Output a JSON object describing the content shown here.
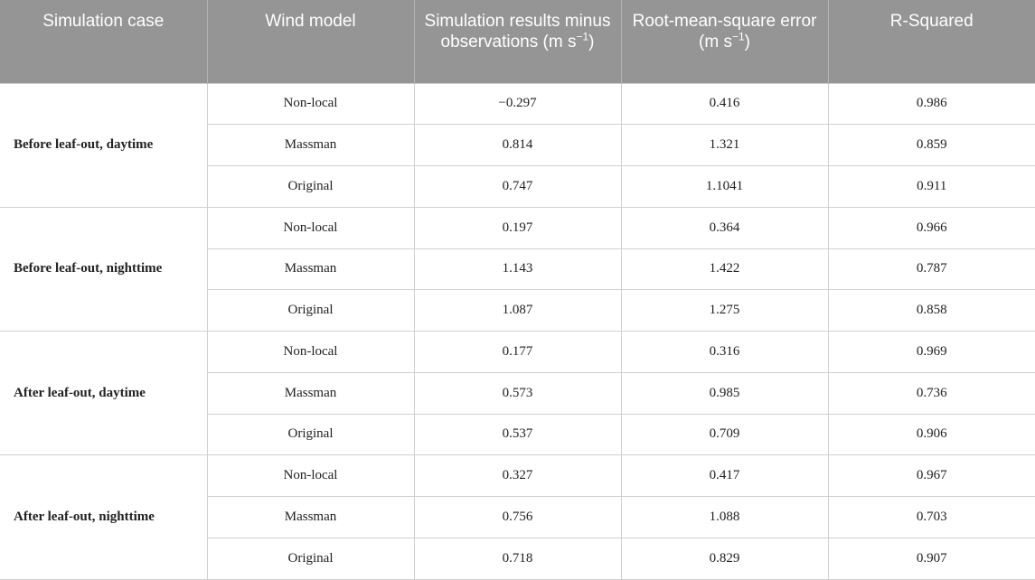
{
  "table": {
    "headers": {
      "case": "Simulation case",
      "model": "Wind model",
      "bias_prefix": "Simulation results minus observations (m s",
      "bias_sup": "−1",
      "bias_suffix": ")",
      "rmse_prefix": "Root-mean-square error (m s",
      "rmse_sup": "−1",
      "rmse_suffix": ")",
      "r2": "R-Squared"
    },
    "groups": [
      {
        "case": "Before leaf-out, daytime",
        "rows": [
          {
            "model": "Non-local",
            "bias": "−0.297",
            "rmse": "0.416",
            "r2": "0.986"
          },
          {
            "model": "Massman",
            "bias": "0.814",
            "rmse": "1.321",
            "r2": "0.859"
          },
          {
            "model": "Original",
            "bias": "0.747",
            "rmse": "1.1041",
            "r2": "0.911"
          }
        ]
      },
      {
        "case": "Before leaf-out, nighttime",
        "rows": [
          {
            "model": "Non-local",
            "bias": "0.197",
            "rmse": "0.364",
            "r2": "0.966"
          },
          {
            "model": "Massman",
            "bias": "1.143",
            "rmse": "1.422",
            "r2": "0.787"
          },
          {
            "model": "Original",
            "bias": "1.087",
            "rmse": "1.275",
            "r2": "0.858"
          }
        ]
      },
      {
        "case": "After leaf-out, daytime",
        "rows": [
          {
            "model": "Non-local",
            "bias": "0.177",
            "rmse": "0.316",
            "r2": "0.969"
          },
          {
            "model": "Massman",
            "bias": "0.573",
            "rmse": "0.985",
            "r2": "0.736"
          },
          {
            "model": "Original",
            "bias": "0.537",
            "rmse": "0.709",
            "r2": "0.906"
          }
        ]
      },
      {
        "case": "After leaf-out, nighttime",
        "rows": [
          {
            "model": "Non-local",
            "bias": "0.327",
            "rmse": "0.417",
            "r2": "0.967"
          },
          {
            "model": "Massman",
            "bias": "0.756",
            "rmse": "1.088",
            "r2": "0.703"
          },
          {
            "model": "Original",
            "bias": "0.718",
            "rmse": "0.829",
            "r2": "0.907"
          }
        ]
      }
    ]
  }
}
